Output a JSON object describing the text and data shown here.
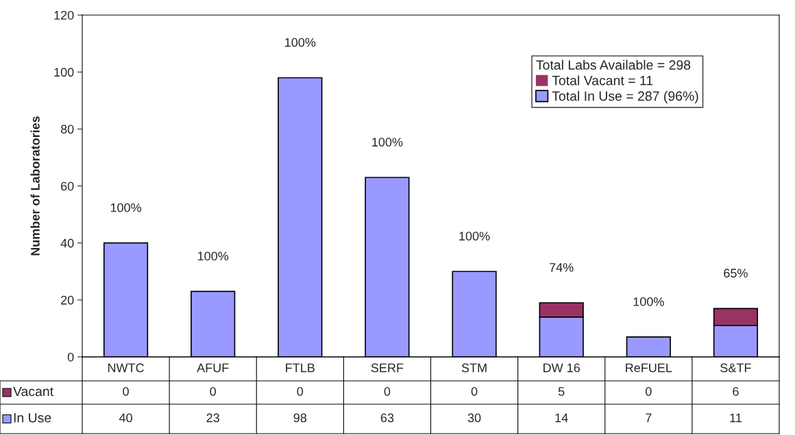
{
  "chart_data": {
    "type": "bar",
    "stacked": true,
    "ylabel": "Number of Laboratories",
    "categories": [
      "NWTC",
      "AFUF",
      "FTLB",
      "SERF",
      "STM",
      "DW 16",
      "ReFUEL",
      "S&TF"
    ],
    "series": [
      {
        "name": "Total In Use = 287 (96%)",
        "color": "#9999ff",
        "values": [
          40,
          23,
          98,
          63,
          30,
          14,
          7,
          11
        ]
      },
      {
        "name": "Total Vacant = 11",
        "color": "#993366",
        "values": [
          0,
          0,
          0,
          0,
          0,
          5,
          0,
          6
        ]
      }
    ],
    "ylim": [
      0,
      120
    ],
    "yticks": [
      0,
      20,
      40,
      60,
      80,
      100,
      120
    ],
    "data_labels": true,
    "legend": "top right",
    "legend_title": "Total Labs Available = 298",
    "annotations": [
      "100%",
      "100%",
      "100%",
      "100%",
      "100%",
      "74%",
      "100%",
      "65%",
      "In Use",
      "Vacant"
    ]
  }
}
